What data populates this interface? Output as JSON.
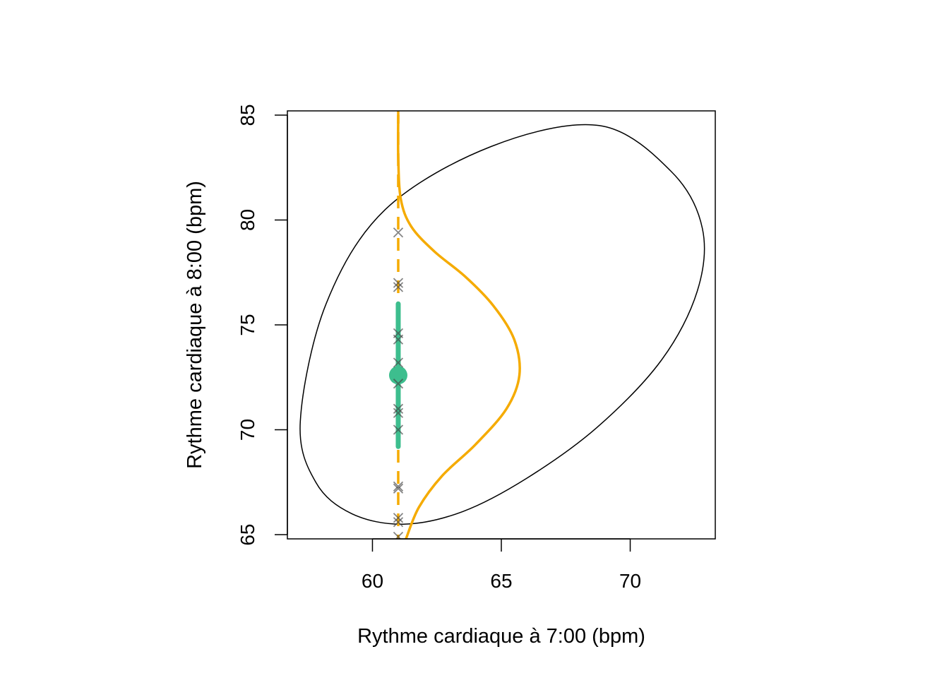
{
  "chart_data": {
    "type": "scatter",
    "xlabel": "Rythme cardiaque à 7:00 (bpm)",
    "ylabel": "Rythme cardiaque à 8:00 (bpm)",
    "xlim": [
      56.7,
      73.3
    ],
    "ylim": [
      64.8,
      85.2
    ],
    "x_ticks": [
      60,
      65,
      70
    ],
    "y_ticks": [
      65,
      70,
      75,
      80,
      85
    ],
    "conditioning_x": 61,
    "points_y": [
      79.4,
      77.0,
      76.8,
      74.6,
      74.3,
      73.2,
      72.2,
      71.0,
      70.8,
      70.0,
      67.3,
      67.2,
      65.8,
      65.6,
      64.9
    ],
    "conditional_mean": 72.6,
    "interval": [
      69.2,
      76.0
    ],
    "ellipse": {
      "center": [
        65.0,
        75.0
      ],
      "points": [
        [
          57.2,
          70.4
        ],
        [
          57.8,
          67.5
        ],
        [
          59.2,
          66.0
        ],
        [
          61.2,
          65.5
        ],
        [
          63.5,
          66.1
        ],
        [
          66.0,
          67.7
        ],
        [
          68.7,
          70.1
        ],
        [
          71.2,
          73.3
        ],
        [
          72.6,
          76.6
        ],
        [
          72.8,
          79.6
        ],
        [
          71.6,
          82.3
        ],
        [
          68.8,
          84.5
        ],
        [
          64.6,
          83.5
        ],
        [
          60.5,
          80.5
        ],
        [
          58.2,
          76.0
        ],
        [
          57.2,
          70.4
        ]
      ]
    },
    "density_curve": [
      [
        61.0,
        85.0
      ],
      [
        61.0,
        83.0
      ],
      [
        61.1,
        81.0
      ],
      [
        61.5,
        79.7
      ],
      [
        62.4,
        78.5
      ],
      [
        63.6,
        77.3
      ],
      [
        64.7,
        75.9
      ],
      [
        65.5,
        74.3
      ],
      [
        65.7,
        72.6
      ],
      [
        65.2,
        71.0
      ],
      [
        64.0,
        69.3
      ],
      [
        62.7,
        67.8
      ],
      [
        61.8,
        66.3
      ],
      [
        61.3,
        64.8
      ]
    ],
    "colors": {
      "density": "#F5AB00",
      "interval": "#3DBE8E",
      "points": "#444444",
      "ellipse": "#000000"
    }
  }
}
